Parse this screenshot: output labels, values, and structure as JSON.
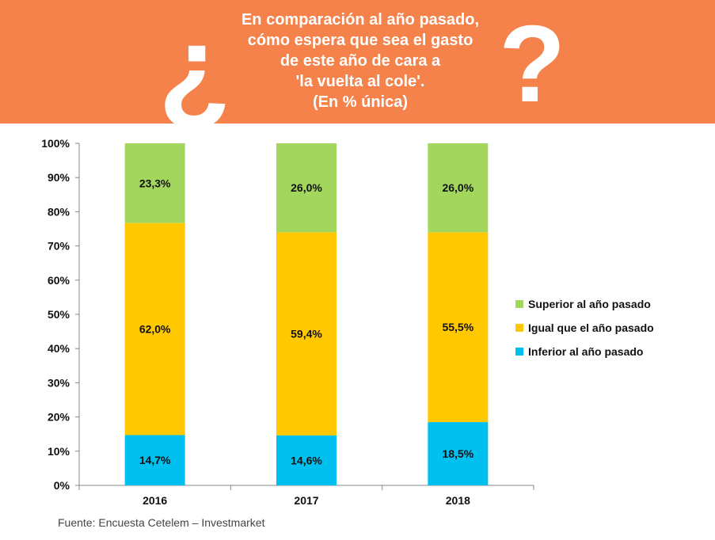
{
  "header": {
    "open_mark": "¿",
    "close_mark": "?",
    "title_lines": [
      "En comparación al año pasado,",
      "cómo espera que sea el gasto",
      "de este año de cara a",
      "'la vuelta al cole'.",
      "(En % única)"
    ]
  },
  "colors": {
    "banner": "#f4824a",
    "superior": "#a3d65c",
    "igual": "#ffc800",
    "inferior": "#00c0f0"
  },
  "chart_data": {
    "type": "bar",
    "stacked": true,
    "categories": [
      "2016",
      "2017",
      "2018"
    ],
    "series": [
      {
        "name": "Inferior al año pasado",
        "values": [
          14.7,
          14.6,
          18.5
        ],
        "labels": [
          "14,7%",
          "14,6%",
          "18,5%"
        ],
        "color": "#00c0f0"
      },
      {
        "name": "Igual que el año pasado",
        "values": [
          62.0,
          59.4,
          55.5
        ],
        "labels": [
          "62,0%",
          "59,4%",
          "55,5%"
        ],
        "color": "#ffc800"
      },
      {
        "name": "Superior al año pasado",
        "values": [
          23.3,
          26.0,
          26.0
        ],
        "labels": [
          "23,3%",
          "26,0%",
          "26,0%"
        ],
        "color": "#a3d65c"
      }
    ],
    "ylim": [
      0,
      100
    ],
    "yticks": [
      "0%",
      "10%",
      "20%",
      "30%",
      "40%",
      "50%",
      "60%",
      "70%",
      "80%",
      "90%",
      "100%"
    ],
    "legend_order": [
      "Superior al año pasado",
      "Igual que el año pasado",
      "Inferior al año pasado"
    ],
    "legend_position": "right",
    "grid": false
  },
  "source": "Fuente: Encuesta Cetelem – Investmarket"
}
